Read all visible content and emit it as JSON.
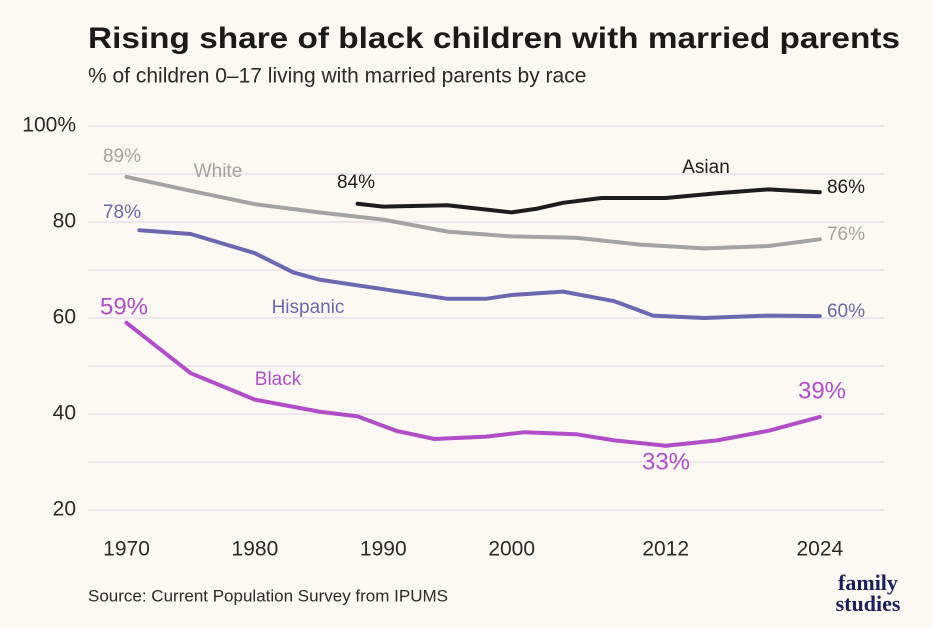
{
  "chart_data": {
    "type": "line",
    "title": "Rising share of black children with married parents",
    "subtitle": "% of children 0–17 living with married parents by race",
    "source": "Source: Current Population Survey from IPUMS",
    "logo": [
      "family",
      "studies"
    ],
    "xlim": [
      1967,
      2029
    ],
    "xticks": [
      1970,
      1980,
      1990,
      2000,
      2012,
      2024
    ],
    "ylim": [
      20,
      100
    ],
    "yticks": [
      20,
      40,
      60,
      80,
      {
        "value": 100,
        "label": "100%"
      }
    ],
    "yminorticks": [
      30,
      50,
      70,
      90
    ],
    "grid": true,
    "series": [
      {
        "name": "White",
        "color": "#a3a3a3",
        "x": [
          1970,
          1975,
          1980,
          1985,
          1990,
          1995,
          2000,
          2005,
          2010,
          2015,
          2020,
          2024
        ],
        "values": [
          89.4,
          86.5,
          83.7,
          82,
          80.5,
          78,
          77,
          76.7,
          75.3,
          74.5,
          75,
          76.4
        ],
        "value_labels": [
          "89%",
          null,
          null,
          null,
          null,
          null,
          null,
          null,
          null,
          null,
          null,
          "76%"
        ]
      },
      {
        "name": "Asian",
        "color": "#1c1c1c",
        "x": [
          1988,
          1990,
          1995,
          2000,
          2002,
          2004,
          2007,
          2012,
          2016,
          2020,
          2024
        ],
        "values": [
          83.8,
          83.2,
          83.5,
          82,
          82.8,
          84,
          85,
          85,
          86,
          86.8,
          86.2
        ],
        "value_labels": [
          "84%",
          null,
          null,
          null,
          null,
          null,
          null,
          null,
          null,
          null,
          "86%"
        ]
      },
      {
        "name": "Hispanic",
        "color": "#6b68b0",
        "x": [
          1971,
          1975,
          1980,
          1983,
          1985,
          1990,
          1995,
          1998,
          2000,
          2004,
          2008,
          2011,
          2015,
          2020,
          2024
        ],
        "values": [
          78.3,
          77.5,
          73.5,
          69.5,
          68,
          66,
          64,
          64,
          64.8,
          65.5,
          63.5,
          60.5,
          60,
          60.5,
          60.4
        ],
        "value_labels": [
          "78%",
          null,
          null,
          null,
          null,
          null,
          null,
          null,
          null,
          null,
          null,
          null,
          null,
          null,
          "60%"
        ]
      },
      {
        "name": "Black",
        "color": "#b04ec8",
        "x": [
          1970,
          1975,
          1980,
          1985,
          1988,
          1991,
          1994,
          1998,
          2001,
          2005,
          2008,
          2012,
          2016,
          2020,
          2024
        ],
        "values": [
          59.0,
          48.5,
          43,
          40.5,
          39.5,
          36.5,
          34.8,
          35.3,
          36.2,
          35.8,
          34.5,
          33.4,
          34.5,
          36.5,
          39.4
        ],
        "value_labels": [
          "59%",
          null,
          null,
          null,
          null,
          null,
          null,
          null,
          null,
          null,
          null,
          "33%",
          null,
          null,
          "39%"
        ]
      }
    ]
  }
}
